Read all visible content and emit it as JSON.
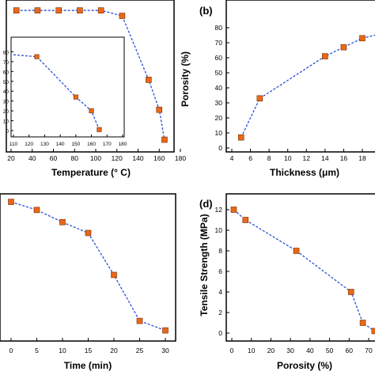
{
  "panels": [
    {
      "label": "",
      "xlabel": "Temperature (° C)",
      "ylabel": "",
      "chart_data": {
        "type": "line",
        "x": [
          25,
          45,
          65,
          85,
          105,
          125,
          150,
          160,
          165
        ],
        "values": [
          97,
          97,
          97,
          97,
          97,
          93,
          46,
          24,
          2
        ],
        "xlim": [
          0,
          180
        ],
        "ylim": [
          0,
          100
        ],
        "xticks": [
          20,
          40,
          60,
          80,
          100,
          120,
          140,
          160,
          180
        ],
        "marker_color": "#e8681a",
        "line_color": "#2b4fd8"
      },
      "inset": {
        "chart_data": {
          "type": "line",
          "x": [
            110,
            125,
            150,
            160,
            165
          ],
          "values": [
            77,
            75,
            34,
            20,
            1
          ],
          "first_point_marker": false,
          "xlim": [
            110,
            180
          ],
          "ylim": [
            0,
            90
          ],
          "xticks": [
            110,
            120,
            130,
            140,
            150,
            160,
            170,
            180
          ],
          "yticks": [
            0,
            10,
            20,
            30,
            40,
            50,
            60,
            70,
            80
          ]
        }
      }
    },
    {
      "label": "(b)",
      "xlabel": "Thickness (μm)",
      "ylabel": "Porosity (%)",
      "chart_data": {
        "type": "line",
        "x": [
          5,
          7,
          14,
          16,
          18,
          20
        ],
        "values": [
          7,
          33,
          61,
          67,
          73,
          76
        ],
        "xlim": [
          3.5,
          20
        ],
        "ylim": [
          0,
          82
        ],
        "xticks": [
          4,
          6,
          8,
          10,
          12,
          14,
          16,
          18
        ],
        "yticks": [
          0,
          10,
          20,
          30,
          40,
          50,
          60,
          70,
          80
        ]
      }
    },
    {
      "label": "",
      "xlabel": "Time (min)",
      "ylabel": "",
      "chart_data": {
        "type": "line",
        "x": [
          0,
          5,
          10,
          15,
          20,
          25,
          30
        ],
        "values": [
          97,
          91,
          82,
          74,
          43,
          9,
          2
        ],
        "xlim": [
          -3,
          33
        ],
        "ylim": [
          0,
          100
        ],
        "xticks": [
          0,
          5,
          10,
          15,
          20,
          25,
          30
        ]
      }
    },
    {
      "label": "(d)",
      "xlabel": "Porosity (%)",
      "ylabel": "Tensile Strength (MPa)",
      "chart_data": {
        "type": "line",
        "x": [
          1,
          7,
          33,
          61,
          67,
          73
        ],
        "values": [
          12,
          11,
          8,
          4,
          1,
          0.2
        ],
        "xlim": [
          -5,
          73
        ],
        "ylim": [
          -0.8,
          12.5
        ],
        "xticks": [
          0,
          10,
          20,
          30,
          40,
          50,
          60,
          70
        ],
        "yticks": [
          0,
          2,
          4,
          6,
          8,
          10,
          12
        ]
      }
    }
  ]
}
